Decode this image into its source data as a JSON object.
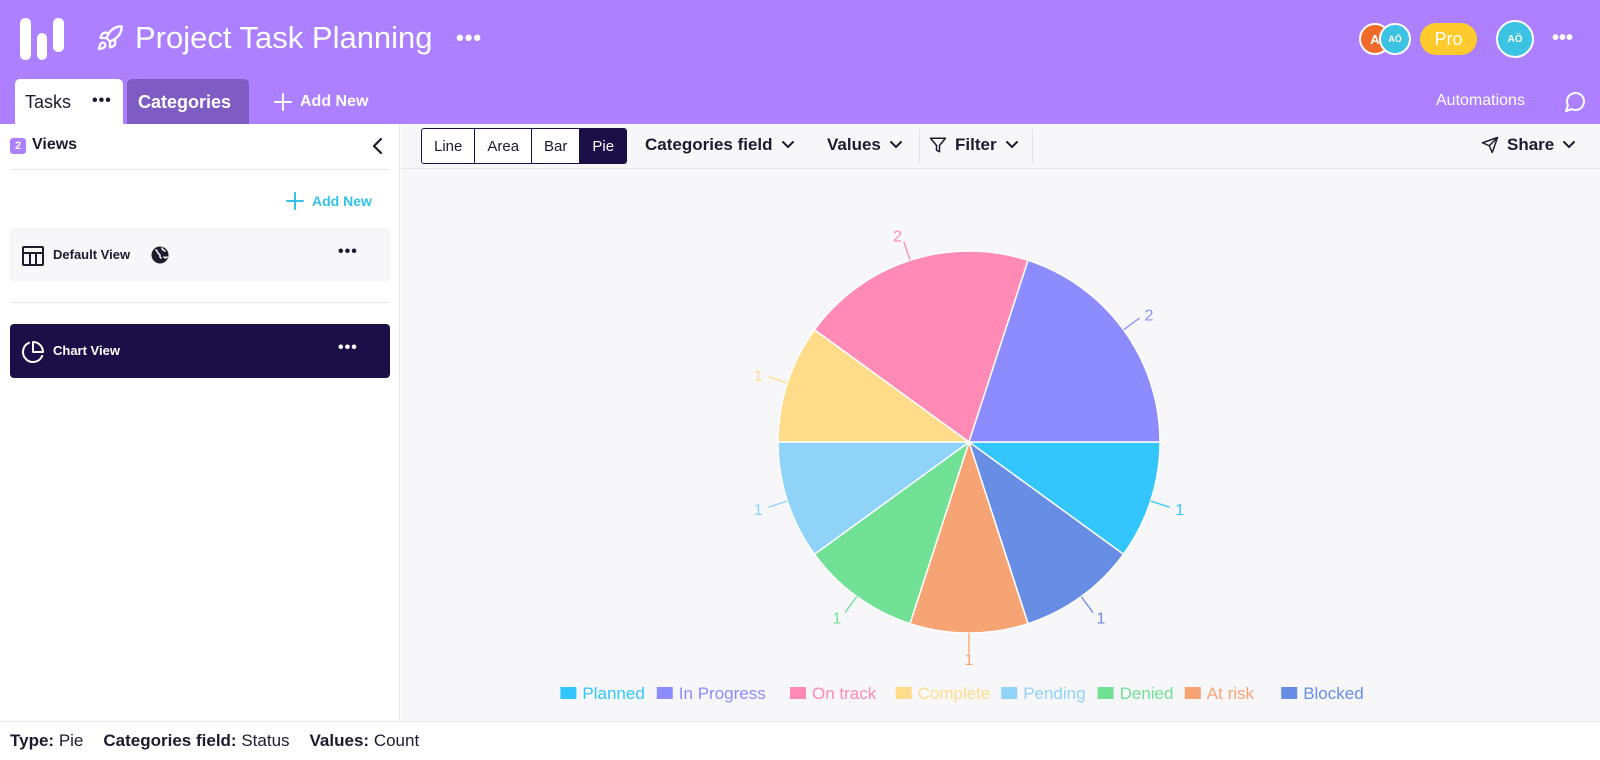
{
  "header": {
    "title": "Project Task Planning",
    "avatars": [
      "A",
      "AÖ"
    ],
    "plan_badge": "Pro",
    "user_avatar": "AÖ",
    "bg_color": "#ac80ff"
  },
  "tabs": {
    "tasks_label": "Tasks",
    "categories_label": "Categories",
    "add_new_label": "Add New",
    "automations_label": "Automations"
  },
  "sidebar": {
    "views_count": "2",
    "views_label": "Views",
    "add_new_label": "Add New",
    "items": [
      {
        "label": "Default View",
        "icon": "table-icon",
        "active": false
      },
      {
        "label": "Chart View",
        "icon": "pie-chart-icon",
        "active": true
      }
    ]
  },
  "toolbar": {
    "chart_types": [
      "Line",
      "Area",
      "Bar",
      "Pie"
    ],
    "active_chart_type": "Pie",
    "categories_field_label": "Categories field",
    "values_label": "Values",
    "filter_label": "Filter",
    "share_label": "Share"
  },
  "chart_data": {
    "type": "pie",
    "categories": [
      "Planned",
      "In Progress",
      "On track",
      "Complete",
      "Pending",
      "Denied",
      "At risk",
      "Blocked"
    ],
    "values": [
      1,
      2,
      2,
      1,
      1,
      1,
      1,
      1
    ],
    "colors": [
      "#33c6fc",
      "#8c8cff",
      "#ff8ab6",
      "#ffdc8a",
      "#8fd3f8",
      "#70e195",
      "#f6a474",
      "#678ee4"
    ],
    "legend_position": "bottom",
    "slices_order": [
      "Planned",
      "Blocked",
      "At risk",
      "Denied",
      "Pending",
      "Complete",
      "On track",
      "In Progress"
    ],
    "slices_values": [
      1,
      1,
      1,
      1,
      1,
      1,
      2,
      2
    ]
  },
  "footer": {
    "type_label": "Type:",
    "type_value": "Pie",
    "categories_label": "Categories field:",
    "categories_value": "Status",
    "values_label": "Values:",
    "values_value": "Count"
  }
}
